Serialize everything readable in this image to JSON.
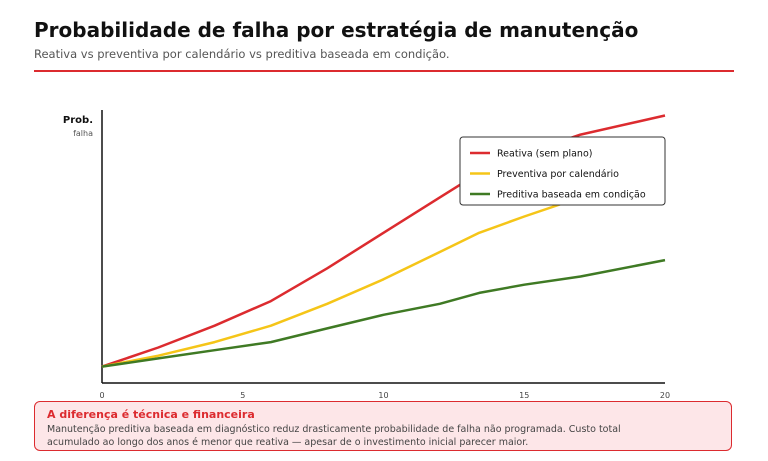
{
  "header": {
    "title": "Probabilidade de falha por estratégia de manutenção",
    "subtitle": "Reativa vs preventiva por calendário vs preditiva baseada em condição."
  },
  "chart_data": {
    "type": "line",
    "y_axis_label_main": "Prob.",
    "y_axis_label_sub": "falha",
    "xlim": [
      0,
      20
    ],
    "x_ticks": [
      0,
      5,
      10,
      15,
      20
    ],
    "ylim": [
      0,
      1
    ],
    "show_y_ticks": false,
    "grid": false,
    "legend_position": "top-right",
    "series": [
      {
        "name": "Reativa (sem plano)",
        "color": "#dc2b2f",
        "x": [
          0,
          2,
          4,
          6,
          8,
          10,
          12,
          13.4,
          15,
          17,
          20
        ],
        "y": [
          0.06,
          0.13,
          0.21,
          0.3,
          0.42,
          0.55,
          0.68,
          0.77,
          0.84,
          0.91,
          0.98
        ]
      },
      {
        "name": "Preventiva por calendário",
        "color": "#f5c518",
        "x": [
          0,
          2,
          4,
          6,
          8,
          10,
          12,
          13.4,
          15,
          17,
          20
        ],
        "y": [
          0.06,
          0.1,
          0.15,
          0.21,
          0.29,
          0.38,
          0.48,
          0.55,
          0.61,
          0.68,
          0.78
        ]
      },
      {
        "name": "Preditiva baseada em condição",
        "color": "#3f7a24",
        "x": [
          0,
          2,
          4,
          6,
          8,
          10,
          12,
          13.4,
          15,
          17,
          20
        ],
        "y": [
          0.06,
          0.09,
          0.12,
          0.15,
          0.2,
          0.25,
          0.29,
          0.33,
          0.36,
          0.39,
          0.45
        ]
      }
    ]
  },
  "callout": {
    "title": "A diferença é técnica e financeira",
    "text": "Manutenção preditiva baseada em diagnóstico reduz drasticamente probabilidade de falha não programada. Custo total acumulado ao longo dos anos é menor que reativa — apesar de o investimento inicial parecer maior."
  }
}
